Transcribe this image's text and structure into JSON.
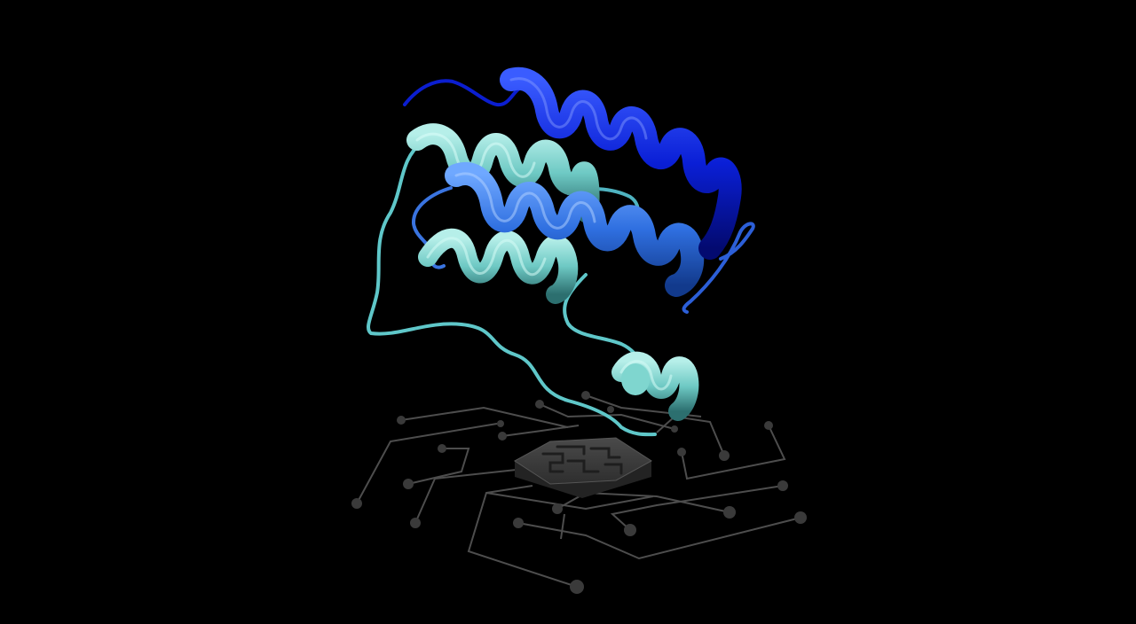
{
  "scene": {
    "subject": "protein-ribbon-structure",
    "platform": "circuit-board-hexagon-chip"
  },
  "colors": {
    "background": "#000000",
    "helix_deep_blue": "#0a1fd6",
    "helix_mid_blue": "#2f6fe0",
    "helix_cyan": "#6ec9c4",
    "loop_cyan": "#5fc7c9",
    "circuit_line": "#4a4a4a",
    "circuit_node": "#3a3a3a",
    "chip_face": "#3c3c3c",
    "chip_side": "#262626"
  }
}
